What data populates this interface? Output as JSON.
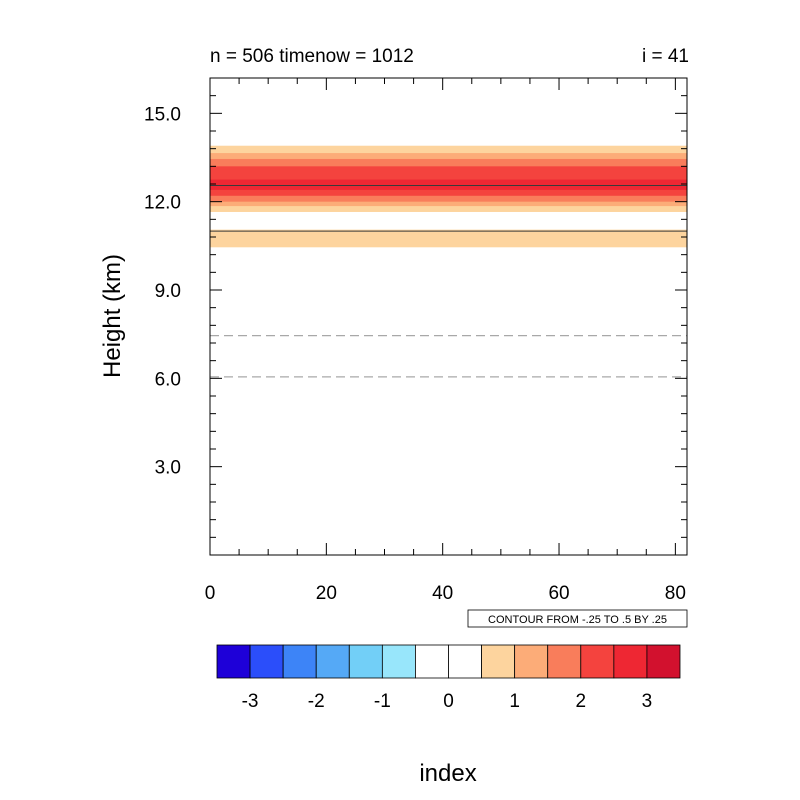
{
  "chart_data": {
    "type": "heatmap",
    "title_left": "n = 506 timenow = 1012",
    "title_right": "i = 41",
    "xlabel": "index",
    "ylabel": "Height (km)",
    "xlim": [
      0,
      82
    ],
    "ylim": [
      0,
      16.2
    ],
    "x_ticks": [
      0,
      20,
      40,
      60,
      80
    ],
    "x_tick_labels": [
      "0",
      "20",
      "40",
      "60",
      "80"
    ],
    "y_ticks": [
      3,
      6,
      9,
      12,
      15
    ],
    "y_tick_labels": [
      "3.0",
      "6.0",
      "9.0",
      "12.0",
      "15.0"
    ],
    "contour_info": "CONTOUR FROM -.25 TO .5 BY .25",
    "field_bands": [
      {
        "y0": 11.65,
        "y1": 13.9,
        "level": 1
      },
      {
        "y0": 11.85,
        "y1": 13.65,
        "level": 1.5
      },
      {
        "y0": 12.0,
        "y1": 13.45,
        "level": 2
      },
      {
        "y0": 12.2,
        "y1": 13.2,
        "level": 2.5
      },
      {
        "y0": 12.4,
        "y1": 12.75,
        "level": 3
      },
      {
        "y0": 10.45,
        "y1": 11.05,
        "level": 1
      }
    ],
    "contour_lines": [
      {
        "y": 12.55,
        "style": "solid"
      },
      {
        "y": 11.0,
        "style": "solid"
      },
      {
        "y": 7.45,
        "style": "dashed"
      },
      {
        "y": 6.05,
        "style": "dashed"
      }
    ],
    "colorbar": {
      "colors": [
        "#1e00d8",
        "#2b4efa",
        "#3d84f7",
        "#55a9f6",
        "#72cff7",
        "#98e6fb",
        "#ffffff",
        "#ffffff",
        "#fdd49e",
        "#fcac78",
        "#f97d5b",
        "#f4433e",
        "#ee2733",
        "#d2112e"
      ],
      "levels": [
        -3.25,
        -2.75,
        -2.25,
        -1.75,
        -1.25,
        -0.75,
        -0.25,
        0.25,
        0.75,
        1.25,
        1.75,
        2.25,
        2.75,
        3.25
      ],
      "tick_labels": [
        "-3",
        "-2",
        "-1",
        "0",
        "1",
        "2",
        "3"
      ]
    }
  }
}
